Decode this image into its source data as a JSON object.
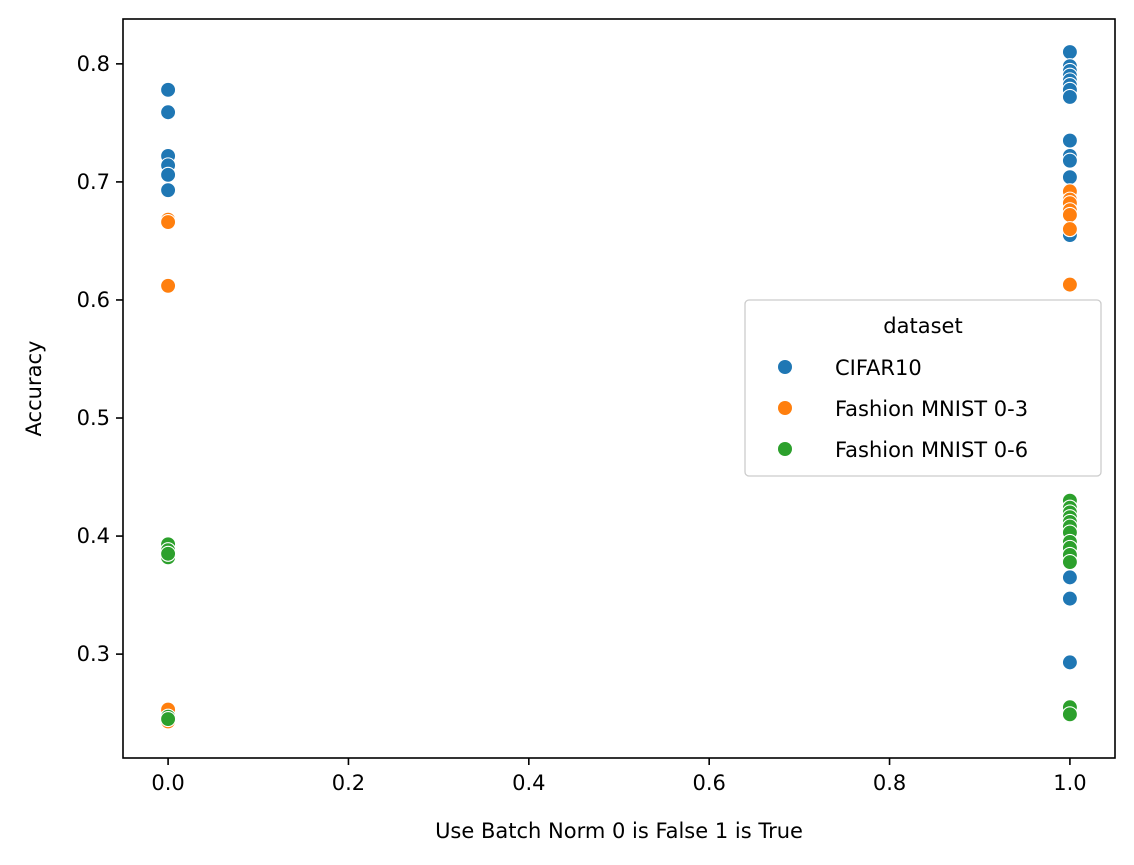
{
  "chart_data": {
    "type": "scatter",
    "title": "",
    "xlabel": "Use Batch Norm 0 is False 1 is True",
    "ylabel": "Accuracy",
    "xlim": [
      -0.05,
      1.05
    ],
    "ylim": [
      0.212,
      0.838
    ],
    "xticks": [
      "0.0",
      "0.2",
      "0.4",
      "0.6",
      "0.8",
      "1.0"
    ],
    "xtick_values": [
      0.0,
      0.2,
      0.4,
      0.6,
      0.8,
      1.0
    ],
    "yticks": [
      "0.3",
      "0.4",
      "0.5",
      "0.6",
      "0.7",
      "0.8"
    ],
    "ytick_values": [
      0.3,
      0.4,
      0.5,
      0.6,
      0.7,
      0.8
    ],
    "grid": false,
    "legend": {
      "title": "dataset",
      "placement": "center-right"
    },
    "series": [
      {
        "name": "CIFAR10",
        "color": "#1f77b4",
        "points": [
          [
            0,
            0.778
          ],
          [
            0,
            0.759
          ],
          [
            0,
            0.722
          ],
          [
            0,
            0.714
          ],
          [
            0,
            0.706
          ],
          [
            0,
            0.693
          ],
          [
            1,
            0.81
          ],
          [
            1,
            0.798
          ],
          [
            1,
            0.794
          ],
          [
            1,
            0.79
          ],
          [
            1,
            0.786
          ],
          [
            1,
            0.782
          ],
          [
            1,
            0.778
          ],
          [
            1,
            0.772
          ],
          [
            1,
            0.735
          ],
          [
            1,
            0.722
          ],
          [
            1,
            0.718
          ],
          [
            1,
            0.704
          ],
          [
            1,
            0.69
          ],
          [
            1,
            0.672
          ],
          [
            1,
            0.655
          ],
          [
            1,
            0.365
          ],
          [
            1,
            0.347
          ],
          [
            1,
            0.293
          ]
        ]
      },
      {
        "name": "Fashion MNIST 0-3",
        "color": "#ff7f0e",
        "points": [
          [
            0,
            0.668
          ],
          [
            0,
            0.666
          ],
          [
            0,
            0.612
          ],
          [
            0,
            0.253
          ],
          [
            0,
            0.243
          ],
          [
            1,
            0.692
          ],
          [
            1,
            0.685
          ],
          [
            1,
            0.682
          ],
          [
            1,
            0.676
          ],
          [
            1,
            0.672
          ],
          [
            1,
            0.66
          ],
          [
            1,
            0.613
          ]
        ]
      },
      {
        "name": "Fashion MNIST 0-6",
        "color": "#2ca02c",
        "points": [
          [
            0,
            0.393
          ],
          [
            0,
            0.388
          ],
          [
            0,
            0.382
          ],
          [
            0,
            0.385
          ],
          [
            0,
            0.247
          ],
          [
            0,
            0.245
          ],
          [
            1,
            0.43
          ],
          [
            1,
            0.424
          ],
          [
            1,
            0.42
          ],
          [
            1,
            0.416
          ],
          [
            1,
            0.412
          ],
          [
            1,
            0.408
          ],
          [
            1,
            0.403
          ],
          [
            1,
            0.395
          ],
          [
            1,
            0.39
          ],
          [
            1,
            0.384
          ],
          [
            1,
            0.378
          ],
          [
            1,
            0.255
          ],
          [
            1,
            0.249
          ]
        ]
      }
    ]
  }
}
